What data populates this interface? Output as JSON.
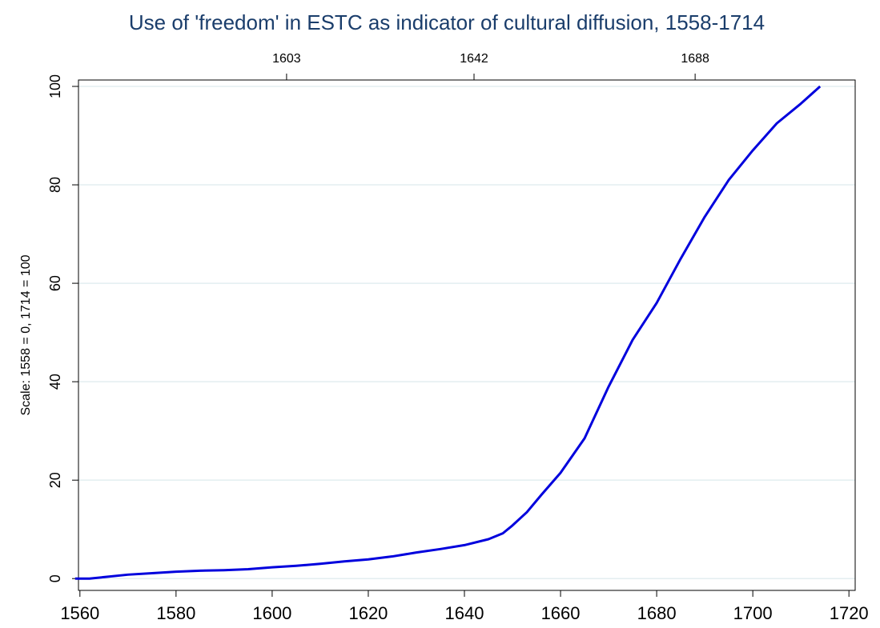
{
  "chart_data": {
    "type": "line",
    "title": "Use of 'freedom' in ESTC as indicator of cultural diffusion, 1558-1714",
    "ylabel": "Scale: 1558 = 0, 1714 = 100",
    "x": [
      1559,
      1562,
      1565,
      1570,
      1575,
      1580,
      1585,
      1590,
      1595,
      1600,
      1605,
      1610,
      1615,
      1620,
      1625,
      1630,
      1635,
      1640,
      1645,
      1648,
      1650,
      1653,
      1656,
      1660,
      1665,
      1670,
      1675,
      1680,
      1685,
      1690,
      1695,
      1700,
      1705,
      1710,
      1714
    ],
    "series": [
      {
        "color": "#0000dd",
        "values": [
          0,
          0,
          0.3,
          0.8,
          1.1,
          1.4,
          1.6,
          1.7,
          1.9,
          2.3,
          2.6,
          3.0,
          3.5,
          3.9,
          4.5,
          5.3,
          6.0,
          6.8,
          8.0,
          9.2,
          10.8,
          13.5,
          17,
          21.5,
          28.5,
          39,
          48.5,
          56,
          65,
          73.5,
          81,
          87,
          92.5,
          96.5,
          100
        ]
      }
    ],
    "xlim": [
      1559.7,
      1721.3
    ],
    "xticks": [
      1560,
      1580,
      1600,
      1620,
      1640,
      1660,
      1680,
      1700,
      1720
    ],
    "x2ticks": [
      1603,
      1642,
      1688
    ],
    "ylim": [
      -2.4,
      101.3
    ],
    "yticks": [
      0,
      20,
      40,
      60,
      80,
      100
    ],
    "grid": true
  }
}
